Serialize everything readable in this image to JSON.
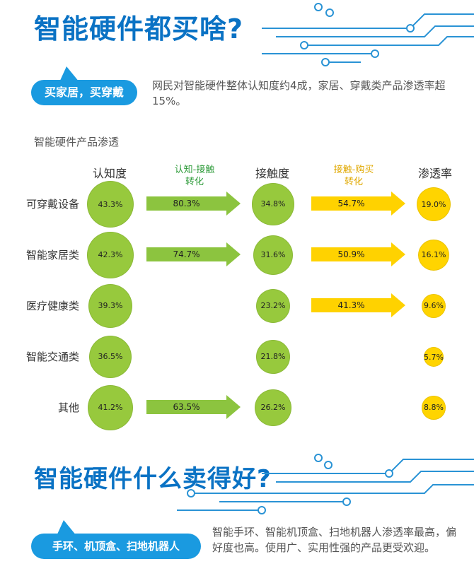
{
  "section1": {
    "headline": "智能硬件都买啥?",
    "bubble": "买家居，买穿戴",
    "desc": "网民对智能硬件整体认知度约4成，家居、穿戴类产品渗透率超15%。"
  },
  "chart_title": "智能硬件产品渗透",
  "chart_data": {
    "type": "table",
    "title": "智能硬件产品渗透",
    "columns": {
      "awareness": "认知度",
      "conv1": "认知-接触\n转化",
      "contact": "接触度",
      "conv2": "接触-购买\n转化",
      "penetration": "渗透率"
    },
    "rows": [
      {
        "category": "可穿戴设备",
        "awareness": "43.3%",
        "conv1": "80.3%",
        "contact": "34.8%",
        "conv2": "54.7%",
        "penetration": "19.0%"
      },
      {
        "category": "智能家居类",
        "awareness": "42.3%",
        "conv1": "74.7%",
        "contact": "31.6%",
        "conv2": "50.9%",
        "penetration": "16.1%"
      },
      {
        "category": "医疗健康类",
        "awareness": "39.3%",
        "conv1": null,
        "contact": "23.2%",
        "conv2": "41.3%",
        "penetration": "9.6%"
      },
      {
        "category": "智能交通类",
        "awareness": "36.5%",
        "conv1": null,
        "contact": "21.8%",
        "conv2": null,
        "penetration": "5.7%"
      },
      {
        "category": "其他",
        "awareness": "41.2%",
        "conv1": "63.5%",
        "contact": "26.2%",
        "conv2": null,
        "penetration": "8.8%"
      }
    ],
    "colors": {
      "green": "#8cc43f",
      "circle_green": "#97c93d",
      "yellow": "#ffd200",
      "circle_yellow": "#ffd400",
      "conv1_head": "#2e9b3a",
      "conv2_head": "#e0a800"
    }
  },
  "section2": {
    "headline": "智能硬件什么卖得好?",
    "bubble": "手环、机顶盒、扫地机器人",
    "desc": "智能手环、智能机顶盒、扫地机器人渗透率最高，偏好度也高。使用广、实用性强的产品更受欢迎。"
  }
}
